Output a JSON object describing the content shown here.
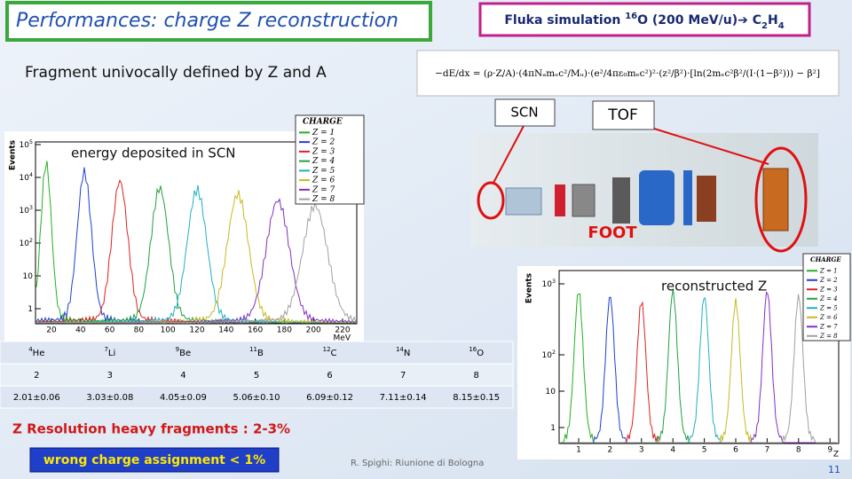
{
  "title": "Performances: charge Z reconstruction",
  "simulation": [
    {
      "text": "Fluka simulation "
    },
    {
      "text": "16",
      "style": "sup"
    },
    {
      "text": "O (200 MeV/u)➔ C"
    },
    {
      "text": "2",
      "style": "sub"
    },
    {
      "text": "H"
    },
    {
      "text": "4",
      "style": "sub"
    }
  ],
  "subtitle": "Fragment univocally defined by Z and A",
  "formula": "−dE/dx = (ρ·Z/A)·(4πNₐmₑc²/Mᵤ)·(e²/4πε₀mₑc²)²·(z²/β²)·[ln(2mₑc²β²/(I·(1−β²))) − β²]",
  "labels": {
    "scn": "SCN",
    "tof": "TOF",
    "foot": "FOOT",
    "energy": "energy deposited in SCN",
    "reconstructed": "reconstructed Z"
  },
  "legend": {
    "title": "CHARGE",
    "items": [
      {
        "label": "Z = 1",
        "color": "#22b022"
      },
      {
        "label": "Z = 2",
        "color": "#1f3fd0"
      },
      {
        "label": "Z = 3",
        "color": "#e02020"
      },
      {
        "label": "Z = 4",
        "color": "#20a040"
      },
      {
        "label": "Z = 5",
        "color": "#20b0c0"
      },
      {
        "label": "Z = 6",
        "color": "#c8b820"
      },
      {
        "label": "Z = 7",
        "color": "#8030c0"
      },
      {
        "label": "Z = 8",
        "color": "#a0a0a0"
      }
    ]
  },
  "left_plot": {
    "ylabel": "Events",
    "xlabel": "MeV",
    "yticks": [
      {
        "base": "10",
        "exp": "5"
      },
      {
        "base": "10",
        "exp": "4"
      },
      {
        "base": "10",
        "exp": "3"
      },
      {
        "base": "10",
        "exp": "2"
      },
      {
        "base": "10"
      },
      {
        "base": "1"
      }
    ],
    "xticks": [
      20,
      40,
      60,
      80,
      100,
      120,
      140,
      160,
      180,
      200,
      220
    ]
  },
  "right_plot": {
    "ylabel": "Events",
    "xlabel": "Z",
    "yticks": [
      {
        "base": "10",
        "exp": "3"
      },
      {
        "base": "10",
        "exp": "2"
      },
      {
        "base": "10"
      },
      {
        "base": "1"
      }
    ],
    "xticks": [
      1,
      2,
      3,
      4,
      5,
      6,
      7,
      8,
      9
    ]
  },
  "table": {
    "header": [
      {
        "mass": "4",
        "el": "He"
      },
      {
        "mass": "7",
        "el": "Li"
      },
      {
        "mass": "9",
        "el": "Be"
      },
      {
        "mass": "11",
        "el": "B"
      },
      {
        "mass": "12",
        "el": "C"
      },
      {
        "mass": "14",
        "el": "N"
      },
      {
        "mass": "16",
        "el": "O"
      }
    ],
    "rows": [
      [
        "2",
        "3",
        "4",
        "5",
        "6",
        "7",
        "8"
      ],
      [
        "2.01±0.06",
        "3.03±0.08",
        "4.05±0.09",
        "5.06±0.10",
        "6.09±0.12",
        "7.11±0.14",
        "8.15±0.15"
      ]
    ]
  },
  "resolution": "Z Resolution heavy fragments : 2-3%",
  "wrong": "wrong charge assignment < 1%",
  "footer": "R. Spighi: Riunione di Bologna",
  "page": "11"
}
